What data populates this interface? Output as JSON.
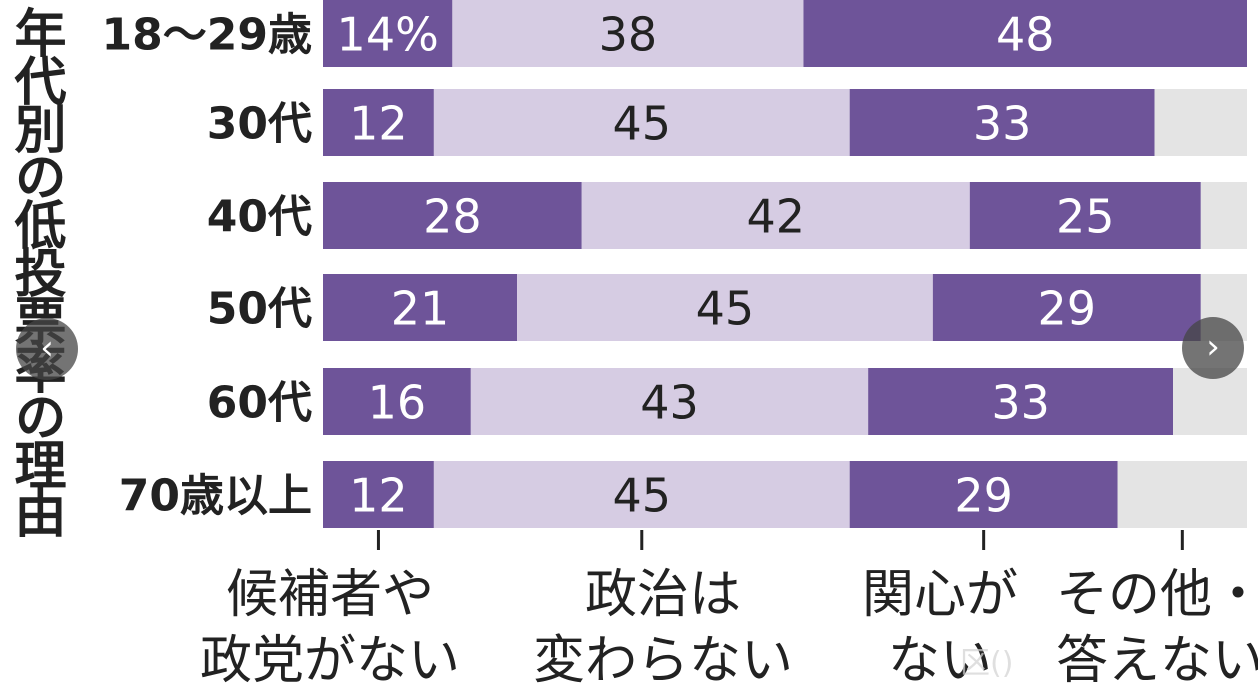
{
  "chart_data": {
    "type": "bar",
    "orientation": "horizontal",
    "stacked": true,
    "title": "年代別の低投票率の理由",
    "categories": [
      "18〜29歳",
      "30代",
      "40代",
      "50代",
      "60代",
      "70歳以上"
    ],
    "series": [
      {
        "name": "候補者や政党がない",
        "values": [
          14,
          12,
          28,
          21,
          16,
          12
        ]
      },
      {
        "name": "政治は変わらない",
        "values": [
          38,
          45,
          42,
          45,
          43,
          45
        ]
      },
      {
        "name": "関心がない",
        "values": [
          48,
          33,
          25,
          29,
          33,
          29
        ]
      },
      {
        "name": "その他・答えない",
        "values": [
          0,
          10,
          5,
          5,
          8,
          14
        ]
      }
    ],
    "data_labels": [
      [
        "14%",
        "38",
        "48",
        ""
      ],
      [
        "12",
        "45",
        "33",
        ""
      ],
      [
        "28",
        "42",
        "25",
        ""
      ],
      [
        "21",
        "45",
        "29",
        ""
      ],
      [
        "16",
        "43",
        "33",
        ""
      ],
      [
        "12",
        "45",
        "29",
        ""
      ]
    ],
    "legend_lines": [
      [
        "候補者や",
        "政党がない"
      ],
      [
        "政治は",
        "変わらない"
      ],
      [
        "関心が",
        "ない"
      ],
      [
        "その他・",
        "答えない"
      ]
    ],
    "xlim": [
      0,
      100
    ],
    "grid": false,
    "legend_position": "bottom"
  },
  "colors": {
    "dark_purple": "#6e5499",
    "light_purple": "#d6cce3",
    "gray": "#e4e4e4",
    "label_dark": "#222222",
    "label_light": "#ffffff"
  },
  "nav": {
    "prev_icon": "‹",
    "next_icon": "›"
  },
  "watermark": "区()"
}
